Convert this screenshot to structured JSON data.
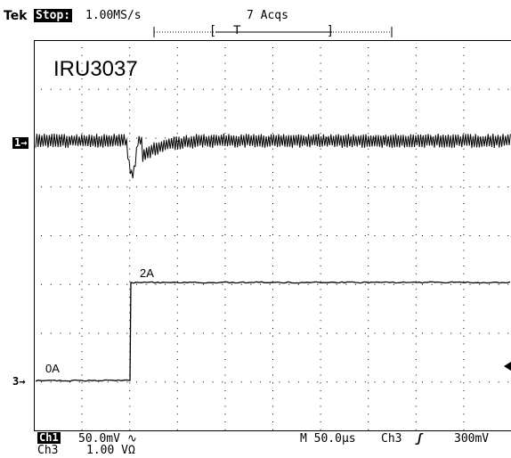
{
  "header": {
    "brand": "Tek",
    "state": "Stop:",
    "sample_rate": "1.00MS/s",
    "acqs": "7 Acqs"
  },
  "screen": {
    "title": "IRU3037",
    "label_2a": "2A",
    "label_0a": "0A"
  },
  "markers": {
    "ch1": "1→",
    "ch3": "3→",
    "trigger_left": "[",
    "trigger_right": "]",
    "trigger_t": "T"
  },
  "footer": {
    "ch1_name": "Ch1",
    "ch1_scale": "50.0mV",
    "ch1_coupling": "∿",
    "ch3_name": "Ch3",
    "ch3_scale": "1.00 VΩ",
    "timebase": "M 50.0µs",
    "trigger_source": "Ch3",
    "trigger_slope": "ʃ",
    "trigger_level": "300mV"
  },
  "traces": {
    "ch1_color": "#000000",
    "ch3_color": "#000000"
  }
}
